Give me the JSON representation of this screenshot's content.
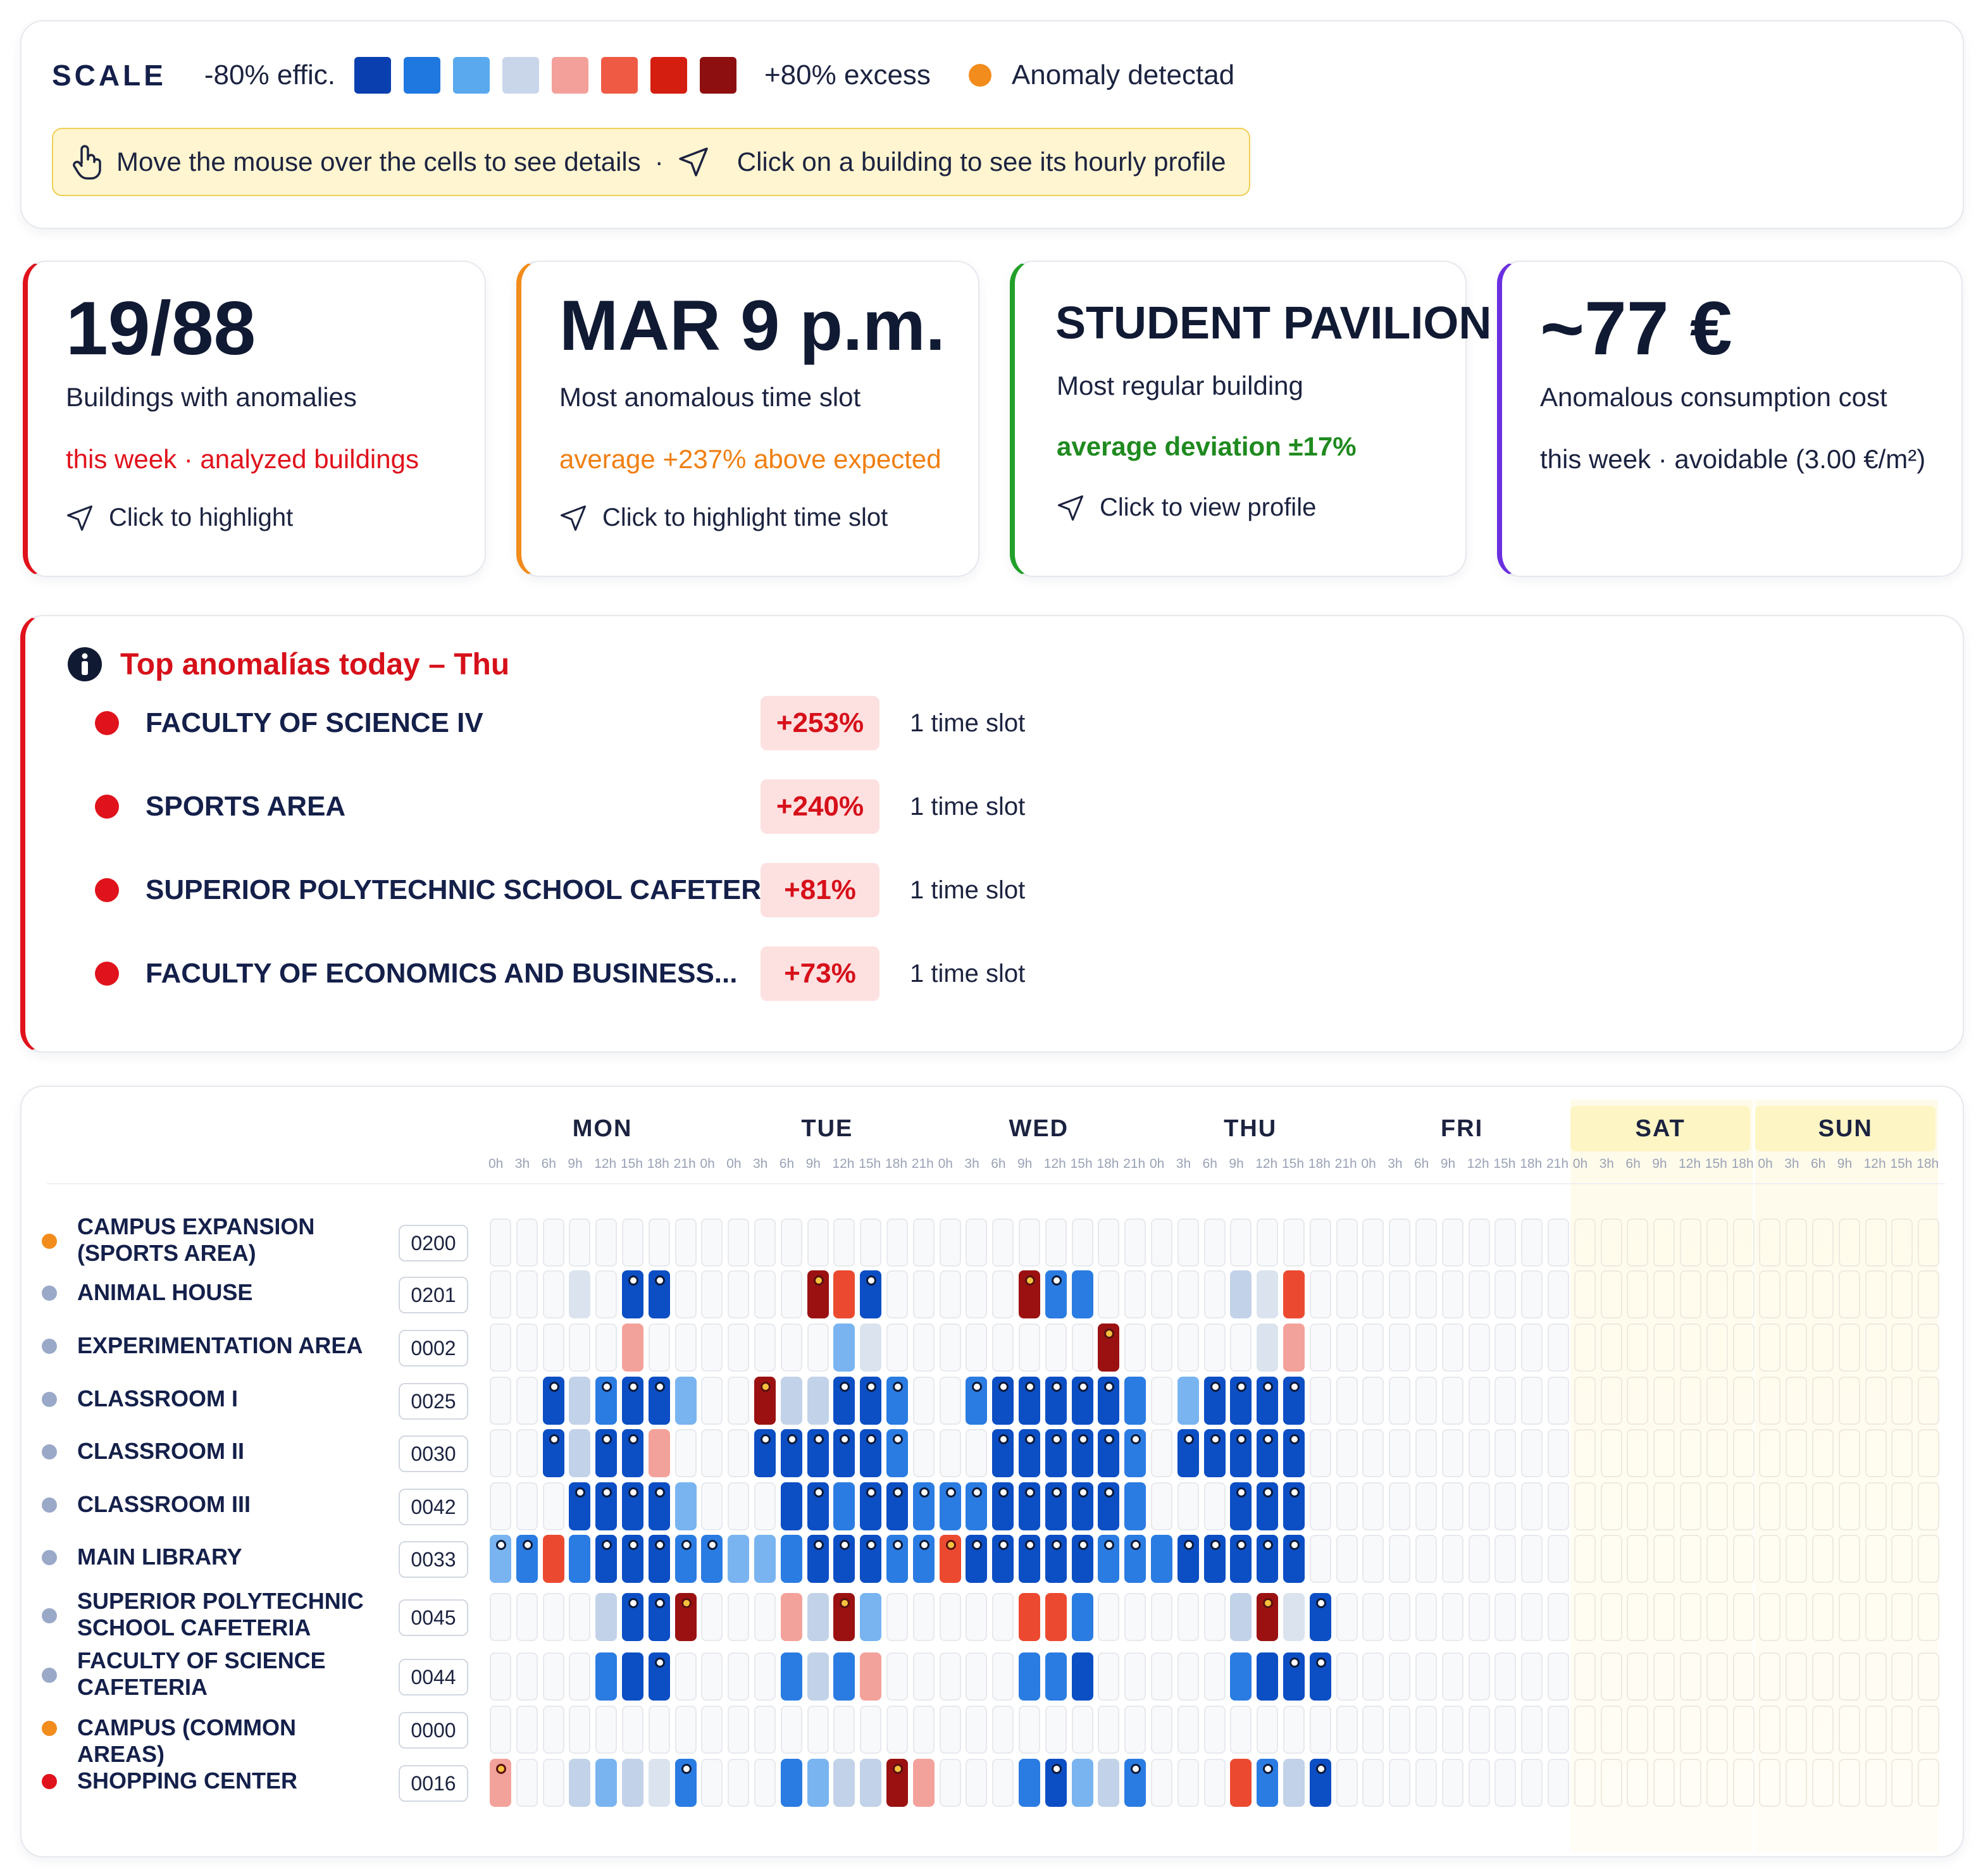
{
  "legend": {
    "title": "SCALE",
    "low_label": "-80% effic.",
    "high_label": "+80% excess",
    "anomaly_label": "Anomaly detectad",
    "scale_colors": [
      "#0a3fb0",
      "#1f78e0",
      "#5aa9ee",
      "#c9d6ea",
      "#f4a09a",
      "#ef5a45",
      "#d41e10",
      "#8e0f0f"
    ],
    "anomaly_color": "#f28c1c",
    "hint_hover": "Move the mouse over the cells to see details",
    "hint_sep": "·",
    "hint_click": "Click on a building to see its hourly profile"
  },
  "kpis": [
    {
      "value": "19/88",
      "label": "Buildings with anomalies",
      "note": "this week · analyzed buildings",
      "note_color": "#e0121c",
      "action": "Click to highlight",
      "accent": "#e0121c"
    },
    {
      "value": "MAR 9 p.m.",
      "label": "Most anomalous time slot",
      "note": "average +237% above expected",
      "note_color": "#f07f12",
      "action": "Click to highlight time slot",
      "accent": "#f28c1c"
    },
    {
      "value": "STUDENT PAVILION",
      "label": "Most regular building",
      "note": "average deviation ±17%",
      "note_color": "#1f8a1f",
      "action": "Click to view profile",
      "accent": "#22a02a"
    },
    {
      "value": "~77 €",
      "label": "Anomalous consumption cost",
      "note": "this week · avoidable (3.00 €/m²)",
      "note_color": "#1c2340",
      "action": "",
      "accent": "#6a2fe0"
    }
  ],
  "top_anomalies": {
    "title": "Top anomalías today – Thu",
    "items": [
      {
        "name": "FACULTY OF SCIENCE IV",
        "pct": "+253%",
        "slots": "1 time slot"
      },
      {
        "name": "SPORTS AREA",
        "pct": "+240%",
        "slots": "1 time slot"
      },
      {
        "name": "SUPERIOR POLYTECHNIC SCHOOL CAFETERIA",
        "pct": "+81%",
        "slots": "1 time slot"
      },
      {
        "name": "FACULTY OF ECONOMICS AND BUSINESS...",
        "pct": "+73%",
        "slots": "1 time slot"
      }
    ]
  },
  "heatmap": {
    "days": [
      "MON",
      "TUE",
      "WED",
      "THU",
      "FRI",
      "SAT",
      "SUN"
    ],
    "hours": [
      "0h",
      "3h",
      "6h",
      "9h",
      "12h",
      "15h",
      "18h",
      "21h"
    ],
    "buildings": [
      {
        "name": "CAMPUS EXPANSION (SPORTS AREA)",
        "code": "0200",
        "status_color": "#f28c1c",
        "cells": ""
      },
      {
        "name": "ANIMAL HOUSE",
        "code": "0201",
        "status_color": "#9aa9c8",
        "cells": "M3-d M5-D* M6-D* T3-X* T4-R T5-D* W3-X* W4-B* W5-B H3-e H4-d H5-R"
      },
      {
        "name": "EXPERIMENTATION AREA",
        "code": "0002",
        "status_color": "#9aa9c8",
        "cells": "M5-p T4-b T5-d W6-X* H4-d H5-p"
      },
      {
        "name": "CLASSROOM I",
        "code": "0025",
        "status_color": "#9aa9c8",
        "cells": "M2-D* M3-e M4-B* M5-D* M6-D* M7-b T1-X* T2-e T3-e T4-D* T5-D* T6-B* W1-B* W2-D* W3-D* W4-D* W5-D* W6-D* W7-B H1-b H2-D* H3-D* H4-D* H5-D*"
      },
      {
        "name": "CLASSROOM II",
        "code": "0030",
        "status_color": "#9aa9c8",
        "cells": "M2-D* M3-e M4-D* M5-D* M6-p T1-D* T2-D* T3-D* T4-D* T5-D* T6-B* W2-D* W3-D* W4-D* W5-D* W6-D* W7-B* H1-D* H2-D* H3-D* H4-D* H5-D*"
      },
      {
        "name": "CLASSROOM III",
        "code": "0042",
        "status_color": "#9aa9c8",
        "cells": "M3-D* M4-D* M5-D* M6-D* M7-b T2-D T3-D* T4-B T5-D* T6-D* T7-B* T8-B* W1-B* W2-D* W3-D* W4-D* W5-D* W6-D* W7-B H3-D* H4-D* H5-D*"
      },
      {
        "name": "MAIN LIBRARY",
        "code": "0033",
        "status_color": "#9aa9c8",
        "cells": "M0-b* M1-B* M2-R M3-B M4-D* M5-D* M6-D* M7-B* M8-B* M9-B* T0-b T1-b T2-B T3-D* T4-D* T5-D* T6-B* T7-B* T8-B* W0-R* W1-D* W2-D* W3-D* W4-D* W5-D* W6-B* W7-B* W8-B* H0-B H1-D* H2-D* H3-D* H4-D* H5-D*"
      },
      {
        "name": "SUPERIOR POLYTECHNIC SCHOOL CAFETERIA",
        "code": "0045",
        "status_color": "#9aa9c8",
        "cells": "M4-e M5-D* M6-D* M7-X* T2-p T3-e T4-X* T5-b W3-R W4-R W5-B H3-e H4-X* H5-d H6-D*"
      },
      {
        "name": "FACULTY OF SCIENCE CAFETERIA",
        "code": "0044",
        "status_color": "#9aa9c8",
        "cells": "M4-B M5-D M6-D* T2-B T3-e T4-B T5-p W3-B W4-B W5-D H3-B H4-D H5-D* H6-D*"
      },
      {
        "name": "CAMPUS (COMMON AREAS)",
        "code": "0000",
        "status_color": "#f28c1c",
        "cells": ""
      },
      {
        "name": "SHOPPING CENTER",
        "code": "0016",
        "status_color": "#e0121c",
        "cells": "M0-p* M3-e M4-b M5-e M6-d M7-B* T2-B T3-b T4-e T5-e T6-X* T7-p W3-B W4-D* W5-b W6-e W7-B* H3-R H4-B* H5-e H6-D*"
      }
    ]
  }
}
